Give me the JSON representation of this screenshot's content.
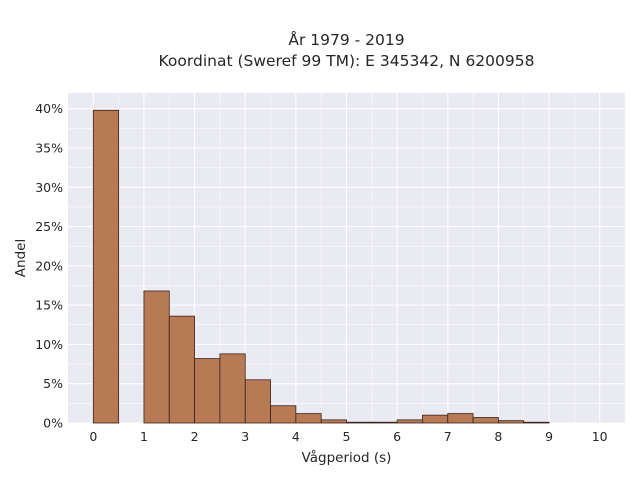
{
  "chart_data": {
    "type": "bar",
    "title": "År 1979 - 2019",
    "subtitle": "Koordinat (Sweref 99 TM): E 345342, N 6200958",
    "xlabel": "Vågperiod (s)",
    "ylabel": "Andel",
    "xlim": [
      -0.5,
      10.5
    ],
    "ylim": [
      0,
      0.42
    ],
    "x_ticks": [
      0,
      1,
      2,
      3,
      4,
      5,
      6,
      7,
      8,
      9,
      10
    ],
    "y_ticks": [
      0,
      0.05,
      0.1,
      0.15,
      0.2,
      0.25,
      0.3,
      0.35,
      0.4
    ],
    "y_tick_labels": [
      "0%",
      "5%",
      "10%",
      "15%",
      "20%",
      "25%",
      "30%",
      "35%",
      "40%"
    ],
    "bin_width": 0.5,
    "bin_starts": [
      0,
      1,
      1.5,
      2,
      2.5,
      3,
      3.5,
      4,
      4.5,
      5,
      5.5,
      6,
      6.5,
      7,
      7.5,
      8,
      8.5
    ],
    "values": [
      0.398,
      0.168,
      0.136,
      0.082,
      0.088,
      0.055,
      0.022,
      0.012,
      0.004,
      0.001,
      0.001,
      0.004,
      0.01,
      0.012,
      0.007,
      0.003,
      0.001
    ],
    "grid": true,
    "colors": {
      "bar_fill": "#b87a55",
      "bar_edge": "#3a2418",
      "plot_bg": "#eaeaf2",
      "grid": "#ffffff"
    }
  }
}
